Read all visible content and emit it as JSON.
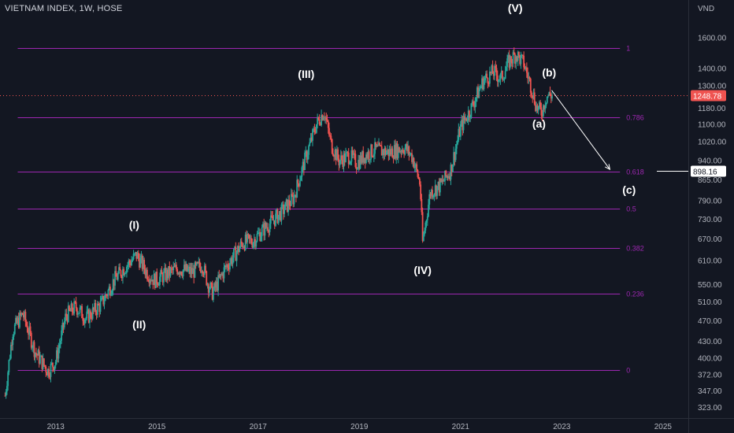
{
  "header": {
    "title": "VIETNAM INDEX, 1W, HOSE"
  },
  "colors": {
    "background": "#131722",
    "fib_line": "#9c27b0",
    "candle_up": "#26a69a",
    "candle_down": "#ef5350",
    "last_price_badge": "#ef5350",
    "target_badge": "#ffffff",
    "axis_text": "#b2b5be"
  },
  "chart_data": {
    "type": "candlestick",
    "title": "VIETNAM INDEX, 1W, HOSE",
    "y_unit": "VND",
    "y_scale": "log",
    "y_ticks": [
      "1600.00",
      "1400.00",
      "1300.00",
      "1180.00",
      "1100.00",
      "1020.00",
      "940.00",
      "865.00",
      "790.00",
      "730.00",
      "670.00",
      "610.00",
      "550.00",
      "510.00",
      "470.00",
      "430.00",
      "400.00",
      "372.00",
      "347.00",
      "323.00"
    ],
    "x_ticks": [
      "2013",
      "2015",
      "2017",
      "2019",
      "2021",
      "2023",
      "2025"
    ],
    "x_range": [
      2011.9,
      2025.5
    ],
    "y_range": [
      315,
      1760
    ],
    "last_price": "1248.78",
    "target_price": "898.16",
    "fib_levels": [
      {
        "label": "1",
        "value": 1530
      },
      {
        "label": "0.786",
        "value": 1135
      },
      {
        "label": "0.618",
        "value": 898
      },
      {
        "label": "0.5",
        "value": 763
      },
      {
        "label": "0.382",
        "value": 645
      },
      {
        "label": "0.236",
        "value": 528
      },
      {
        "label": "0",
        "value": 380
      }
    ],
    "wave_labels": [
      {
        "text": "(I)",
        "x": 2014.55,
        "y": 700
      },
      {
        "text": "(II)",
        "x": 2014.65,
        "y": 455
      },
      {
        "text": "(III)",
        "x": 2017.95,
        "y": 1345
      },
      {
        "text": "(IV)",
        "x": 2020.25,
        "y": 576
      },
      {
        "text": "(V)",
        "x": 2022.08,
        "y": 1790
      },
      {
        "text": "(a)",
        "x": 2022.55,
        "y": 1085
      },
      {
        "text": "(b)",
        "x": 2022.75,
        "y": 1355
      },
      {
        "text": "(c)",
        "x": 2024.33,
        "y": 815
      }
    ],
    "projection": {
      "from": [
        2022.8,
        1275
      ],
      "to": [
        2023.95,
        905
      ]
    },
    "anchors": [
      [
        2012.0,
        340
      ],
      [
        2012.15,
        450
      ],
      [
        2012.35,
        485
      ],
      [
        2012.6,
        410
      ],
      [
        2012.85,
        378
      ],
      [
        2013.0,
        395
      ],
      [
        2013.2,
        480
      ],
      [
        2013.4,
        500
      ],
      [
        2013.6,
        475
      ],
      [
        2013.9,
        505
      ],
      [
        2014.15,
        560
      ],
      [
        2014.35,
        590
      ],
      [
        2014.6,
        625
      ],
      [
        2014.8,
        580
      ],
      [
        2014.95,
        560
      ],
      [
        2015.2,
        575
      ],
      [
        2015.4,
        590
      ],
      [
        2015.7,
        580
      ],
      [
        2015.9,
        600
      ],
      [
        2016.0,
        555
      ],
      [
        2016.1,
        530
      ],
      [
        2016.35,
        590
      ],
      [
        2016.7,
        660
      ],
      [
        2016.9,
        665
      ],
      [
        2017.15,
        705
      ],
      [
        2017.45,
        750
      ],
      [
        2017.7,
        800
      ],
      [
        2017.95,
        960
      ],
      [
        2018.15,
        1100
      ],
      [
        2018.3,
        1165
      ],
      [
        2018.45,
        1005
      ],
      [
        2018.6,
        940
      ],
      [
        2018.8,
        960
      ],
      [
        2018.95,
        930
      ],
      [
        2019.1,
        960
      ],
      [
        2019.3,
        985
      ],
      [
        2019.6,
        975
      ],
      [
        2019.9,
        995
      ],
      [
        2020.05,
        955
      ],
      [
        2020.2,
        850
      ],
      [
        2020.25,
        660
      ],
      [
        2020.4,
        820
      ],
      [
        2020.6,
        845
      ],
      [
        2020.8,
        900
      ],
      [
        2021.0,
        1085
      ],
      [
        2021.2,
        1175
      ],
      [
        2021.45,
        1330
      ],
      [
        2021.65,
        1380
      ],
      [
        2021.8,
        1340
      ],
      [
        2021.95,
        1440
      ],
      [
        2022.1,
        1490
      ],
      [
        2022.25,
        1430
      ],
      [
        2022.4,
        1290
      ],
      [
        2022.5,
        1185
      ],
      [
        2022.6,
        1160
      ],
      [
        2022.7,
        1245
      ],
      [
        2022.8,
        1248.78
      ]
    ]
  }
}
